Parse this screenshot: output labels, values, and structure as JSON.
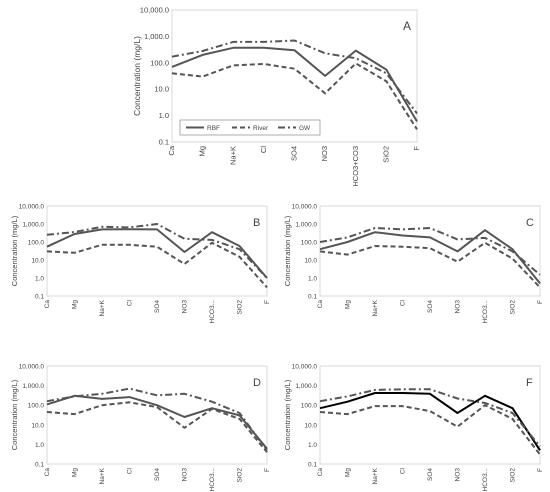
{
  "chart_data": [
    {
      "type": "line",
      "panel_label": "A",
      "ylabel": "Concentration (mg/L)",
      "yscale": "log",
      "ylim": [
        0.1,
        10000
      ],
      "yticks": [
        "0.1",
        "1.0",
        "10.0",
        "100.0",
        "1,000.0",
        "10,000.0"
      ],
      "categories": [
        "Ca",
        "Mg",
        "Na+K",
        "Cl",
        "SO4",
        "NO3",
        "HCO3+CO3",
        "SiO2",
        "F"
      ],
      "grid": false,
      "legend_position": "bottom-left",
      "series": [
        {
          "name": "RBF",
          "values": [
            70,
            200,
            370,
            370,
            300,
            32,
            290,
            55,
            0.6
          ]
        },
        {
          "name": "River",
          "values": [
            40,
            30,
            80,
            90,
            60,
            7,
            95,
            20,
            0.3
          ]
        },
        {
          "name": "GW",
          "values": [
            170,
            280,
            620,
            620,
            700,
            230,
            150,
            40,
            1.2
          ]
        }
      ]
    },
    {
      "type": "line",
      "panel_label": "B",
      "ylabel": "Concentration (mg/L)",
      "yscale": "log",
      "ylim": [
        0.1,
        10000
      ],
      "yticks": [
        "0.1",
        "1.0",
        "10.0",
        "100.0",
        "1,000.0",
        "10,000.0"
      ],
      "categories": [
        "Ca",
        "Mg",
        "Na+K",
        "Cl",
        "SO4",
        "NO3",
        "HCO3...",
        "SiO2",
        "F"
      ],
      "grid": false,
      "series": [
        {
          "name": "RBF",
          "values": [
            55,
            280,
            500,
            510,
            500,
            28,
            350,
            60,
            1
          ]
        },
        {
          "name": "River",
          "values": [
            30,
            25,
            70,
            70,
            55,
            6,
            90,
            15,
            0.3
          ]
        },
        {
          "name": "GW",
          "values": [
            250,
            360,
            700,
            650,
            1000,
            150,
            130,
            40,
            1
          ]
        }
      ]
    },
    {
      "type": "line",
      "panel_label": "C",
      "ylabel": "Concentration (mg/L)",
      "yscale": "log",
      "ylim": [
        0.1,
        10000
      ],
      "yticks": [
        "0.1",
        "1.0",
        "10.0",
        "100.0",
        "1,000.0",
        "10,000.0"
      ],
      "categories": [
        "Ca",
        "Mg",
        "Na+K",
        "Cl",
        "SO4",
        "NO3",
        "HCO3...",
        "SiO2",
        "F"
      ],
      "grid": false,
      "series": [
        {
          "name": "RBF",
          "values": [
            40,
            100,
            350,
            230,
            180,
            30,
            450,
            40,
            0.5
          ]
        },
        {
          "name": "River",
          "values": [
            30,
            20,
            60,
            55,
            45,
            8,
            90,
            12,
            0.3
          ]
        },
        {
          "name": "GW",
          "values": [
            100,
            180,
            600,
            500,
            600,
            140,
            170,
            30,
            1.5
          ]
        }
      ]
    },
    {
      "type": "line",
      "panel_label": "D",
      "ylabel": "Concentration (mg/L)",
      "yscale": "log",
      "ylim": [
        0.1,
        10000
      ],
      "yticks": [
        "0.1",
        "1.0",
        "10.0",
        "100.0",
        "1,000.0",
        "10,000.0"
      ],
      "categories": [
        "Ca",
        "Mg",
        "Na+K",
        "Cl",
        "SO4",
        "NO3",
        "HCO3...",
        "SiO2",
        "F"
      ],
      "grid": false,
      "series": [
        {
          "name": "RBF",
          "values": [
            110,
            300,
            210,
            260,
            100,
            25,
            70,
            30,
            0.6
          ]
        },
        {
          "name": "River",
          "values": [
            45,
            35,
            100,
            140,
            80,
            7,
            65,
            20,
            0.4
          ]
        },
        {
          "name": "GW",
          "values": [
            160,
            280,
            380,
            700,
            320,
            380,
            150,
            40,
            0.5
          ]
        }
      ]
    },
    {
      "type": "line",
      "panel_label": "F",
      "ylabel": "Concentration (mg/L)",
      "yscale": "log",
      "ylim": [
        0.1,
        10000
      ],
      "yticks": [
        "0.1",
        "1.0",
        "10.0",
        "100.0",
        "1,000.0",
        "10,000.0"
      ],
      "categories": [
        "Ca",
        "Mg",
        "Na+K",
        "Cl",
        "SO4",
        "NO3",
        "HCO3...",
        "SiO2",
        "F"
      ],
      "grid": false,
      "series": [
        {
          "name": "RBF",
          "values": [
            70,
            150,
            420,
            420,
            380,
            40,
            300,
            70,
            0.5
          ]
        },
        {
          "name": "River",
          "values": [
            45,
            35,
            90,
            90,
            50,
            8,
            100,
            20,
            0.3
          ]
        },
        {
          "name": "GW",
          "values": [
            160,
            280,
            600,
            650,
            650,
            220,
            130,
            40,
            0.8
          ]
        }
      ]
    }
  ]
}
